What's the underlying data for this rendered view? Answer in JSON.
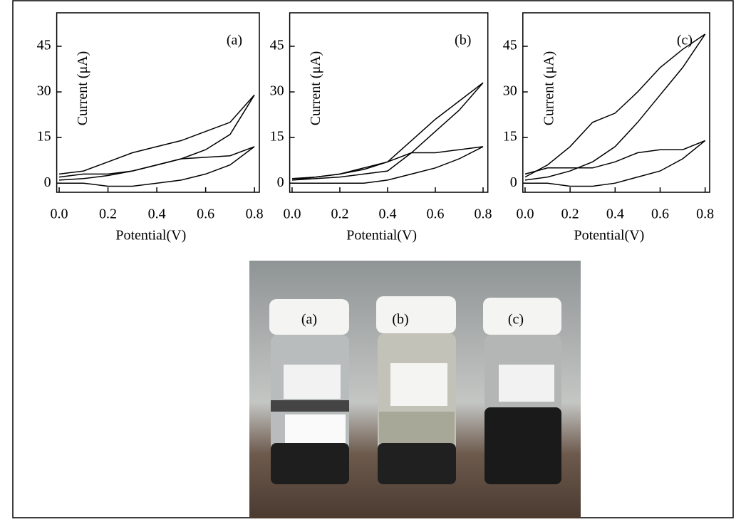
{
  "chart_data": [
    {
      "type": "line",
      "annotation": "(a)",
      "x_label": "Potential(V)",
      "y_label": "Current (μA)",
      "x": [
        0,
        0.1,
        0.2,
        0.3,
        0.4,
        0.5,
        0.6,
        0.7,
        0.8,
        0.7,
        0.6,
        0.5,
        0.4,
        0.3,
        0.2,
        0.1,
        0
      ],
      "series": [
        {
          "color": "#000000",
          "values": [
            1,
            1.5,
            2.5,
            4,
            6,
            8,
            11,
            16,
            29,
            20,
            17,
            14,
            12,
            10,
            7,
            4,
            3
          ]
        },
        {
          "color": "#000000",
          "values": [
            0,
            0,
            -1,
            -1,
            0,
            1,
            3,
            6,
            12,
            9,
            8.5,
            8,
            6,
            4,
            3,
            3,
            2
          ]
        }
      ],
      "xlim": [
        -0.01,
        0.82
      ],
      "ylim": [
        -3,
        56
      ],
      "xticks": [
        {
          "value": 0,
          "label": "0.0"
        },
        0.2,
        0.4,
        0.6,
        0.8
      ],
      "yticks": [
        0,
        15,
        30,
        45
      ]
    },
    {
      "type": "line",
      "annotation": "(b)",
      "x_label": "Potential(V)",
      "y_label": "Current (μA)",
      "x": [
        0,
        0.1,
        0.2,
        0.3,
        0.4,
        0.5,
        0.6,
        0.7,
        0.8,
        0.7,
        0.6,
        0.5,
        0.4,
        0.3,
        0.2,
        0.1,
        0
      ],
      "series": [
        {
          "color": "#000000",
          "values": [
            1,
            1.5,
            2,
            3,
            4,
            10,
            17,
            24,
            33,
            27,
            21,
            14,
            7,
            4.5,
            3,
            2,
            1.5
          ]
        },
        {
          "color": "#000000",
          "values": [
            0,
            0,
            0,
            0,
            1,
            3,
            5,
            8,
            12,
            11,
            10,
            10,
            7,
            5,
            3,
            2,
            1
          ]
        }
      ],
      "xlim": [
        -0.01,
        0.82
      ],
      "ylim": [
        -3,
        56
      ],
      "xticks": [
        {
          "value": 0,
          "label": "0.0"
        },
        0.2,
        0.4,
        0.6,
        0.8
      ],
      "yticks": [
        0,
        15,
        30,
        45
      ]
    },
    {
      "type": "line",
      "annotation": "(c)",
      "x_label": "Potential(V)",
      "y_label": "Current (μA)",
      "x": [
        0,
        0.1,
        0.2,
        0.3,
        0.4,
        0.5,
        0.6,
        0.7,
        0.8,
        0.7,
        0.6,
        0.5,
        0.4,
        0.3,
        0.2,
        0.1,
        0
      ],
      "series": [
        {
          "color": "#000000",
          "values": [
            1,
            2,
            4,
            7,
            12,
            20,
            29,
            38,
            49,
            44,
            38,
            30,
            23,
            20,
            12,
            6,
            2
          ]
        },
        {
          "color": "#000000",
          "values": [
            0,
            0,
            -1,
            -1,
            0,
            2,
            4,
            8,
            14,
            11,
            11,
            10,
            7,
            5,
            5,
            5,
            3
          ]
        }
      ],
      "xlim": [
        -0.01,
        0.82
      ],
      "ylim": [
        -3,
        56
      ],
      "xticks": [
        {
          "value": 0,
          "label": "0.0"
        },
        0.2,
        0.4,
        0.6,
        0.8
      ],
      "yticks": [
        0,
        15,
        30,
        45
      ]
    }
  ],
  "photo": {
    "labels": [
      "(a)",
      "(b)",
      "(c)"
    ]
  }
}
